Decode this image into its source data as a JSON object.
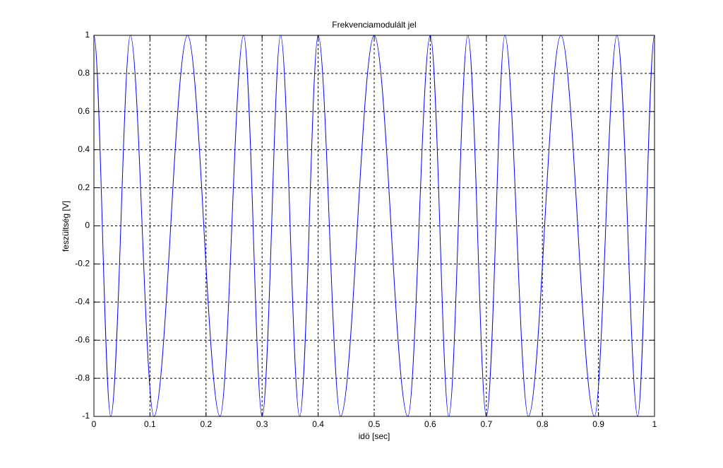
{
  "chart_data": {
    "type": "line",
    "title": "Frekvenciamodulált jel",
    "xlabel": "idö [sec]",
    "ylabel": "feszültség [V]",
    "x": [
      0,
      0.015,
      0.03,
      0.048,
      0.065,
      0.086,
      0.107,
      0.137,
      0.167,
      0.196,
      0.225,
      0.246,
      0.267,
      0.284,
      0.3,
      0.317,
      0.333,
      0.35,
      0.367,
      0.384,
      0.4,
      0.42,
      0.44,
      0.47,
      0.5,
      0.53,
      0.56,
      0.58,
      0.6,
      0.617,
      0.633,
      0.65,
      0.667,
      0.684,
      0.7,
      0.717,
      0.733,
      0.754,
      0.775,
      0.804,
      0.833,
      0.863,
      0.893,
      0.913,
      0.933,
      0.952,
      0.97,
      0.985,
      1.0
    ],
    "values": [
      1,
      0,
      -1,
      0,
      1,
      0,
      -1,
      0,
      1,
      0,
      -1,
      0,
      1,
      0,
      -1,
      0,
      1,
      0,
      -1,
      0,
      1,
      0,
      -1,
      0,
      1,
      0,
      -1,
      0,
      1,
      0,
      -1,
      0,
      1,
      0,
      -1,
      0,
      1,
      0,
      -1,
      0,
      1,
      0,
      -1,
      0,
      1,
      0,
      -1,
      0,
      1
    ],
    "color": "#0000ff",
    "xlim": [
      0,
      1
    ],
    "xticks": [
      0,
      0.1,
      0.2,
      0.3,
      0.4,
      0.5,
      0.6,
      0.7,
      0.8,
      0.9,
      1
    ],
    "ylim": [
      -1,
      1
    ],
    "yticks": [
      -1,
      -0.8,
      -0.6,
      -0.4,
      -0.2,
      0,
      0.2,
      0.4,
      0.6,
      0.8,
      1
    ],
    "grid": true
  }
}
